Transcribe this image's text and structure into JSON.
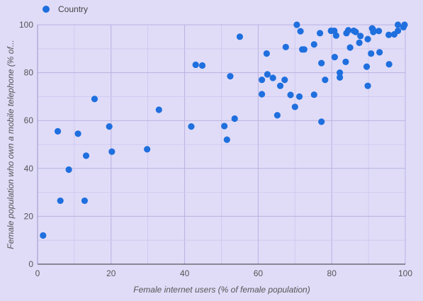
{
  "chart_data": {
    "type": "scatter",
    "title": "",
    "xlabel": "Female internet users (% of female population)",
    "ylabel": "Female population who own a mobile telephone (% of...",
    "xlim": [
      0,
      100
    ],
    "ylim": [
      0,
      100
    ],
    "x_ticks": [
      "0",
      "20",
      "40",
      "60",
      "80",
      "100"
    ],
    "y_ticks": [
      "0",
      "20",
      "40",
      "60",
      "80",
      "100"
    ],
    "grid": true,
    "legend_position": "top-left",
    "point_color": "#1f6fde",
    "background_color": "#e0dcf8",
    "series": [
      {
        "name": "Country",
        "points": [
          [
            1.5,
            12
          ],
          [
            5.5,
            55.5
          ],
          [
            6.2,
            26.5
          ],
          [
            8.5,
            39.5
          ],
          [
            11,
            54.5
          ],
          [
            12.8,
            26.5
          ],
          [
            13.2,
            45.3
          ],
          [
            15.5,
            69
          ],
          [
            19.5,
            57.5
          ],
          [
            20.2,
            47
          ],
          [
            29.8,
            48
          ],
          [
            33,
            64.5
          ],
          [
            41.8,
            57.5
          ],
          [
            43,
            83.3
          ],
          [
            44.8,
            83
          ],
          [
            50.8,
            57.7
          ],
          [
            51.5,
            52
          ],
          [
            52.4,
            78.5
          ],
          [
            53.6,
            60.8
          ],
          [
            55,
            95
          ],
          [
            61,
            71
          ],
          [
            61,
            77
          ],
          [
            62.3,
            88
          ],
          [
            62.5,
            79.3
          ],
          [
            64,
            77.8
          ],
          [
            65.2,
            62.2
          ],
          [
            66,
            74.5
          ],
          [
            67.2,
            77
          ],
          [
            67.5,
            90.7
          ],
          [
            68.8,
            70.7
          ],
          [
            70,
            65.7
          ],
          [
            70.5,
            100
          ],
          [
            71.2,
            70
          ],
          [
            71.5,
            97.3
          ],
          [
            72,
            89.7
          ],
          [
            72.5,
            89.7
          ],
          [
            75.2,
            70.8
          ],
          [
            75.2,
            91.8
          ],
          [
            76.8,
            96.5
          ],
          [
            77.2,
            84
          ],
          [
            77.2,
            59.5
          ],
          [
            78.2,
            77
          ],
          [
            79.8,
            97.5
          ],
          [
            80.7,
            97.5
          ],
          [
            80.8,
            86.5
          ],
          [
            81.2,
            95.5
          ],
          [
            82.2,
            80
          ],
          [
            82.2,
            78
          ],
          [
            83.8,
            84.5
          ],
          [
            84,
            96.5
          ],
          [
            84.5,
            97.7
          ],
          [
            85,
            90.5
          ],
          [
            86,
            97.5
          ],
          [
            86.5,
            97
          ],
          [
            87.5,
            92.5
          ],
          [
            87.8,
            95.3
          ],
          [
            89.5,
            82.5
          ],
          [
            89.8,
            74.5
          ],
          [
            89.8,
            94
          ],
          [
            90.7,
            88
          ],
          [
            91,
            98.5
          ],
          [
            91.3,
            97
          ],
          [
            91.2,
            98
          ],
          [
            92.8,
            97.4
          ],
          [
            93,
            88.5
          ],
          [
            95.5,
            95.8
          ],
          [
            95.6,
            83.5
          ],
          [
            97,
            96
          ],
          [
            98,
            97.5
          ],
          [
            98,
            100
          ],
          [
            99.5,
            99
          ],
          [
            99.8,
            100
          ]
        ]
      }
    ]
  }
}
